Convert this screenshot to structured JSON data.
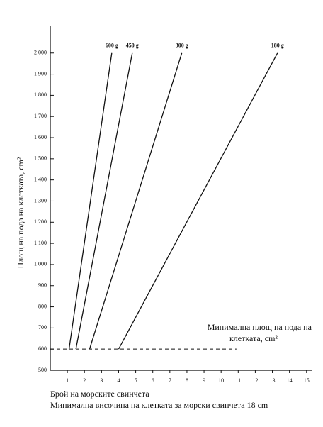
{
  "chart_data": {
    "type": "line",
    "y_label": "Площ на пода на клетката, cm²",
    "x_label": "Брой на морските свинчета",
    "x_label_2": "Минимална височина на клетката за морски свинчета 18 cm",
    "annotation": [
      "Минимална площ на пода на",
      "клетката, cm²"
    ],
    "xlim": [
      0,
      15.3
    ],
    "xticks": [
      1,
      2,
      3,
      4,
      5,
      6,
      7,
      8,
      9,
      10,
      11,
      12,
      13,
      14,
      15
    ],
    "ylim": [
      500,
      2130
    ],
    "yticks": [
      500,
      600,
      700,
      800,
      900,
      {
        "value": 1000,
        "label": "1 000"
      },
      {
        "value": 1100,
        "label": "1 100"
      },
      {
        "value": 1200,
        "label": "1 200"
      },
      {
        "value": 1300,
        "label": "1 300"
      },
      {
        "value": 1400,
        "label": "1 400"
      },
      {
        "value": 1500,
        "label": "1 500"
      },
      {
        "value": 1600,
        "label": "1 600"
      },
      {
        "value": 1700,
        "label": "1 700"
      },
      {
        "value": 1800,
        "label": "1 800"
      },
      {
        "value": 1900,
        "label": "1 900"
      },
      {
        "value": 2000,
        "label": "2 000"
      }
    ],
    "threshold": {
      "value": 600,
      "x_end": 10.9
    },
    "series": [
      {
        "name": "600 g",
        "color": "#111111",
        "x": [
          1.1,
          3.6
        ],
        "values": [
          600,
          2000
        ]
      },
      {
        "name": "450 g",
        "color": "#111111",
        "x": [
          1.5,
          4.8
        ],
        "values": [
          600,
          2000
        ]
      },
      {
        "name": "300 g",
        "color": "#111111",
        "x": [
          2.3,
          7.7
        ],
        "values": [
          600,
          2000
        ]
      },
      {
        "name": "180 g",
        "color": "#111111",
        "x": [
          4.0,
          13.3
        ],
        "values": [
          600,
          2000
        ]
      }
    ]
  }
}
